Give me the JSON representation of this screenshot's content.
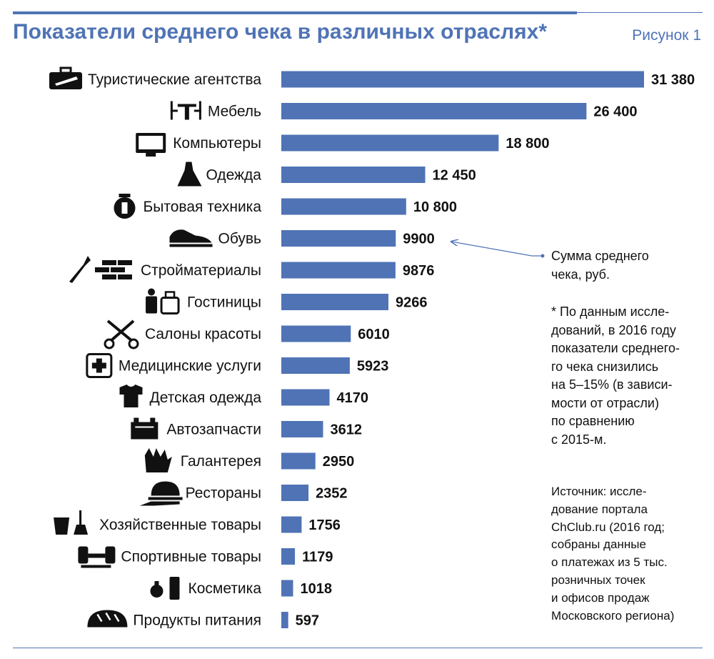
{
  "header": {
    "title": "Показатели среднего чека в различных отраслях*",
    "figure_label": "Рисунок 1"
  },
  "colors": {
    "bar": "#4f73b5",
    "accent": "#4f73b5",
    "text": "#111111"
  },
  "chart_data": {
    "type": "bar",
    "orientation": "horizontal",
    "categories": [
      "Туристические агентства",
      "Мебель",
      "Компьютеры",
      "Одежда",
      "Бытовая техника",
      "Обувь",
      "Стройматериалы",
      "Гостиницы",
      "Салоны красоты",
      "Медицинские услуги",
      "Детская одежда",
      "Автозапчасти",
      "Галантерея",
      "Рестораны",
      "Хозяйственные товары",
      "Спортивные товары",
      "Косметика",
      "Продукты питания"
    ],
    "values": [
      31380,
      26400,
      18800,
      12450,
      10800,
      9900,
      9876,
      9266,
      6010,
      5923,
      4170,
      3612,
      2950,
      2352,
      1756,
      1179,
      1018,
      597
    ],
    "value_labels": [
      "31 380",
      "26 400",
      "18 800",
      "12 450",
      "10 800",
      "9900",
      "9876",
      "9266",
      "6010",
      "5923",
      "4170",
      "3612",
      "2950",
      "2352",
      "1756",
      "1179",
      "1018",
      "597"
    ],
    "icons": [
      "briefcase-plane-icon",
      "furniture-icon",
      "computer-monitor-icon",
      "dress-icon",
      "kettle-icon",
      "sneaker-icon",
      "trowel-bricks-icon",
      "hotel-porter-icon",
      "scissors-comb-icon",
      "medical-cross-icon",
      "baby-bodysuit-icon",
      "car-battery-icon",
      "gloves-icon",
      "cloche-icon",
      "bucket-broom-icon",
      "dumbbell-icon",
      "cosmetics-icon",
      "bread-icon"
    ],
    "xlim": [
      0,
      31380
    ],
    "grid": false,
    "legend": "right"
  },
  "annotations": {
    "value_legend": "Сумма среднего\nчека, руб.",
    "footnote": "* По данным иссле-\nдований, в 2016 году\nпоказатели среднего-\nго чека снизились\nна 5–15% (в зависи-\nмости от отрасли)\nпо сравнению\nс 2015-м.",
    "source": "Источник: иссле-\nдование портала\nChClub.ru (2016 год;\nсобраны данные\nо платежах из 5 тыс.\nрозничных точек\nи офисов продаж\nМосковского региона)"
  }
}
